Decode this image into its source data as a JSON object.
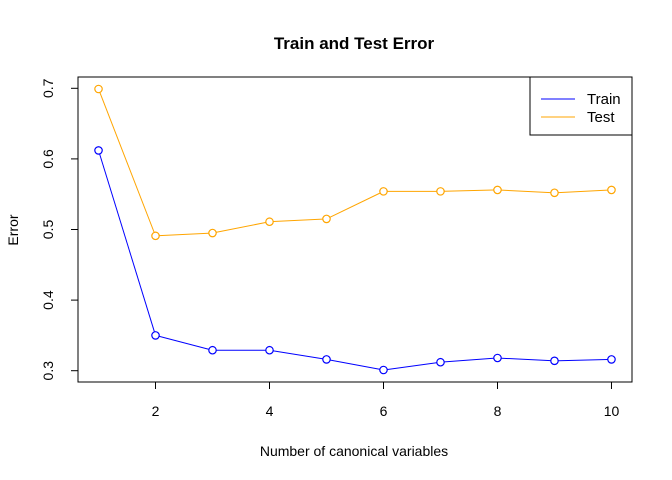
{
  "chart_data": {
    "type": "line",
    "title": "Train and Test Error",
    "xlabel": "Number of canonical variables",
    "ylabel": "Error",
    "x": [
      1,
      2,
      3,
      4,
      5,
      6,
      7,
      8,
      9,
      10
    ],
    "xticks": [
      2,
      4,
      6,
      8,
      10
    ],
    "yticks": [
      0.3,
      0.4,
      0.5,
      0.6,
      0.7
    ],
    "xlim": [
      0.64,
      10.36
    ],
    "ylim": [
      0.284,
      0.716
    ],
    "grid": false,
    "legend_position": "top-right",
    "series": [
      {
        "name": "Train",
        "color": "#0000ff",
        "values": [
          0.612,
          0.35,
          0.329,
          0.329,
          0.316,
          0.301,
          0.312,
          0.318,
          0.314,
          0.316
        ]
      },
      {
        "name": "Test",
        "color": "#ffa500",
        "values": [
          0.699,
          0.491,
          0.495,
          0.511,
          0.515,
          0.554,
          0.554,
          0.556,
          0.552,
          0.556
        ]
      }
    ]
  }
}
